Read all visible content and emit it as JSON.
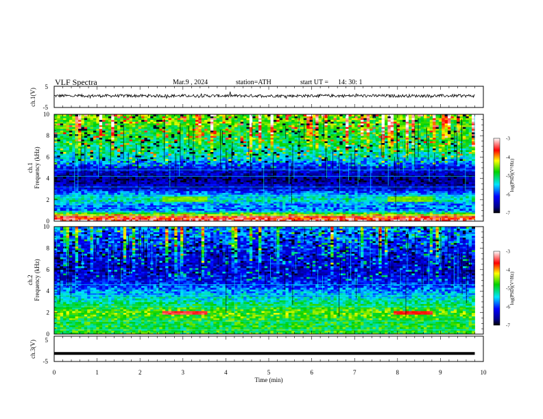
{
  "header": {
    "title": "VLF  Spectra",
    "date": "Mar.9   , 2024",
    "station": "station=ATH",
    "start_label": "start  UT  =",
    "start_time": "14: 30: 1"
  },
  "chart_data": [
    {
      "type": "line",
      "panel": "ch1",
      "ylabel": "ch.1(V)",
      "ytick_labels": [
        "5",
        "-5"
      ],
      "ylim": [
        -5,
        5
      ],
      "xlim": [
        0,
        10
      ],
      "series_mean_V": 0.5,
      "series_noise_amplitude_V": 0.7,
      "x_end_min": 9.8
    },
    {
      "type": "heatmap",
      "panel": "ch1-spectrogram",
      "ylabel_line1": "ch.1",
      "ylabel_line2": "Frequency  (kHz)",
      "ytick_labels": [
        "0",
        "2",
        "4",
        "6",
        "8",
        "10"
      ],
      "ylim_khz": [
        0,
        10
      ],
      "xlim_min": [
        0,
        10
      ],
      "x_end_min": 9.8,
      "colorbar": {
        "label": "log(PSD)(V²/Hz)",
        "ticks": [
          "-3",
          "-4",
          "-5",
          "-6",
          "-7"
        ],
        "range": [
          -7,
          -3
        ]
      },
      "profile": [
        {
          "f_khz": 0.0,
          "level": 0.92
        },
        {
          "f_khz": 0.5,
          "level": 0.8
        },
        {
          "f_khz": 1.0,
          "level": 0.3
        },
        {
          "f_khz": 1.5,
          "level": 0.3
        },
        {
          "f_khz": 2.0,
          "level": 0.45
        },
        {
          "f_khz": 2.5,
          "level": 0.35
        },
        {
          "f_khz": 3.0,
          "level": 0.18
        },
        {
          "f_khz": 4.0,
          "level": 0.08
        },
        {
          "f_khz": 5.0,
          "level": 0.2
        },
        {
          "f_khz": 6.0,
          "level": 0.4
        },
        {
          "f_khz": 7.0,
          "level": 0.48
        },
        {
          "f_khz": 8.5,
          "level": 0.55
        },
        {
          "f_khz": 10.0,
          "level": 0.62
        }
      ],
      "bright_segments": [
        {
          "t0": 2.5,
          "t1": 3.6,
          "f_khz": 2.1,
          "level": 0.62
        },
        {
          "t0": 7.8,
          "t1": 8.8,
          "f_khz": 2.1,
          "level": 0.62
        }
      ],
      "hline_freqs_khz": [
        0.5,
        1.3,
        2.4,
        3.2,
        4.2,
        4.8
      ]
    },
    {
      "type": "heatmap",
      "panel": "ch2-spectrogram",
      "ylabel_line1": "ch.2",
      "ylabel_line2": "Frequency  (kHz)",
      "ytick_labels": [
        "0",
        "2",
        "4",
        "6",
        "8",
        "10"
      ],
      "ylim_khz": [
        0,
        10
      ],
      "xlim_min": [
        0,
        10
      ],
      "x_end_min": 9.8,
      "colorbar": {
        "label": "log(PSD)(V²/Hz)",
        "ticks": [
          "-3",
          "-4",
          "-5",
          "-6",
          "-7"
        ],
        "range": [
          -7,
          -3
        ]
      },
      "profile": [
        {
          "f_khz": 0.0,
          "level": 0.55
        },
        {
          "f_khz": 1.0,
          "level": 0.52
        },
        {
          "f_khz": 2.0,
          "level": 0.6
        },
        {
          "f_khz": 3.0,
          "level": 0.45
        },
        {
          "f_khz": 4.0,
          "level": 0.32
        },
        {
          "f_khz": 5.0,
          "level": 0.2
        },
        {
          "f_khz": 6.0,
          "level": 0.15
        },
        {
          "f_khz": 7.0,
          "level": 0.18
        },
        {
          "f_khz": 8.5,
          "level": 0.25
        },
        {
          "f_khz": 10.0,
          "level": 0.32
        }
      ],
      "bright_segments": [
        {
          "t0": 2.5,
          "t1": 3.6,
          "f_khz": 2.0,
          "level": 0.88
        },
        {
          "t0": 7.9,
          "t1": 8.8,
          "f_khz": 2.0,
          "level": 0.85
        }
      ],
      "hline_freqs_khz": [
        0.4,
        1.2,
        2.6,
        3.6,
        4.6
      ]
    },
    {
      "type": "line",
      "panel": "ch3",
      "ylabel": "ch.3(V)",
      "ytick_labels": [
        "5",
        "-5"
      ],
      "ylim": [
        -5,
        5
      ],
      "xlim": [
        0,
        10
      ],
      "series_mean_V": -1.8,
      "x_end_min": 9.8,
      "xlabel": "Time  (min)",
      "xtick_labels": [
        "0",
        "1",
        "2",
        "3",
        "4",
        "5",
        "6",
        "7",
        "8",
        "9",
        "10"
      ]
    }
  ]
}
